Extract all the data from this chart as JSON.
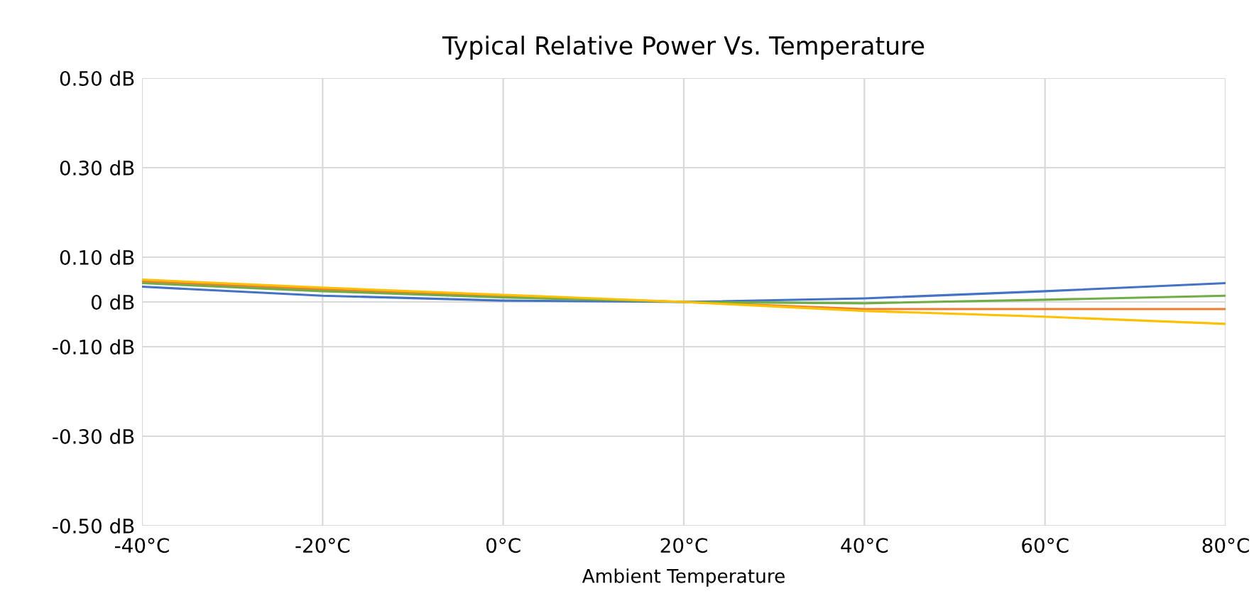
{
  "chart_data": {
    "type": "line",
    "title": "Typical Relative Power Vs. Temperature",
    "xlabel": "Ambient Temperature",
    "x": [
      -40,
      -20,
      0,
      20,
      40,
      60,
      80
    ],
    "series": [
      {
        "color": "#4472c4",
        "values": [
          0.034,
          0.014,
          0.003,
          0,
          0.008,
          0.024,
          0.042
        ]
      },
      {
        "color": "#ed7d31",
        "values": [
          0.046,
          0.028,
          0.013,
          0,
          -0.016,
          -0.016,
          -0.016
        ]
      },
      {
        "color": "#70ad47",
        "values": [
          0.042,
          0.024,
          0.01,
          0,
          -0.003,
          0.005,
          0.014
        ]
      },
      {
        "color": "#ffc000",
        "values": [
          0.05,
          0.032,
          0.016,
          0,
          -0.02,
          -0.033,
          -0.049
        ]
      }
    ],
    "xlim": [
      -40,
      80
    ],
    "ylim": [
      -0.5,
      0.5
    ],
    "xticks": [
      {
        "value": -40,
        "label": "-40°C"
      },
      {
        "value": -20,
        "label": "-20°C"
      },
      {
        "value": 0,
        "label": "0°C"
      },
      {
        "value": 20,
        "label": "20°C"
      },
      {
        "value": 40,
        "label": "40°C"
      },
      {
        "value": 60,
        "label": "60°C"
      },
      {
        "value": 80,
        "label": "80°C"
      }
    ],
    "yticks": [
      {
        "value": -0.5,
        "label": "-0.50 dB"
      },
      {
        "value": -0.3,
        "label": "-0.30 dB"
      },
      {
        "value": -0.1,
        "label": "-0.10 dB"
      },
      {
        "value": 0,
        "label": "0 dB"
      },
      {
        "value": 0.1,
        "label": "0.10 dB"
      },
      {
        "value": 0.3,
        "label": "0.30 dB"
      },
      {
        "value": 0.5,
        "label": "0.50 dB"
      }
    ],
    "grid": true,
    "marker": "none",
    "line_style": "solid"
  }
}
